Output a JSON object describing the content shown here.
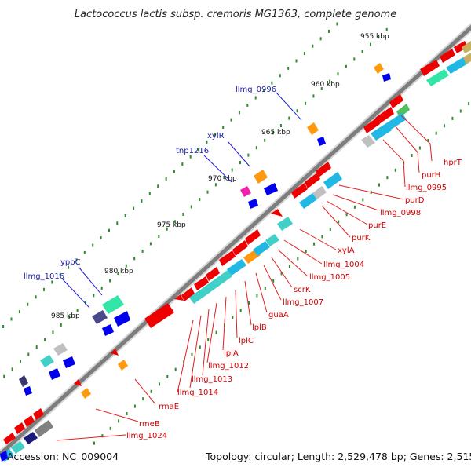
{
  "title": "Lactococcus lactis subsp. cremoris MG1363, complete genome",
  "footer": {
    "accession": "Accession: NC_009004",
    "topology": "Topology: circular; Length: 2,529,478 bp; Genes: 2,515"
  },
  "ticks": [
    "955 kbp",
    "960 kbp",
    "965 kbp",
    "970 kbp",
    "975 kbp",
    "980 kbp",
    "985 kbp"
  ],
  "labels_plus": [
    "hprT",
    "purH",
    "llmg_0995",
    "purD",
    "llmg_0998",
    "purE",
    "purK",
    "xylA",
    "llmg_1004",
    "llmg_1005",
    "scrK",
    "llmg_1007",
    "guaA",
    "lplB",
    "lplC",
    "lplA",
    "llmg_1012",
    "llmg_1013",
    "llmg_1014",
    "rmaE",
    "rmeB",
    "llmg_1024"
  ],
  "labels_minus": [
    "llmg_0996",
    "xylR",
    "tnp1216",
    "ypbC",
    "llmg_1016"
  ],
  "colors": {
    "backbone": "#8a8a8a",
    "plus_label": "#d40000",
    "minus_label": "#1a1aa8",
    "cds": "#ee0000",
    "minus_cds": "#0000ee",
    "tick_mark": "#2e8b2e"
  }
}
